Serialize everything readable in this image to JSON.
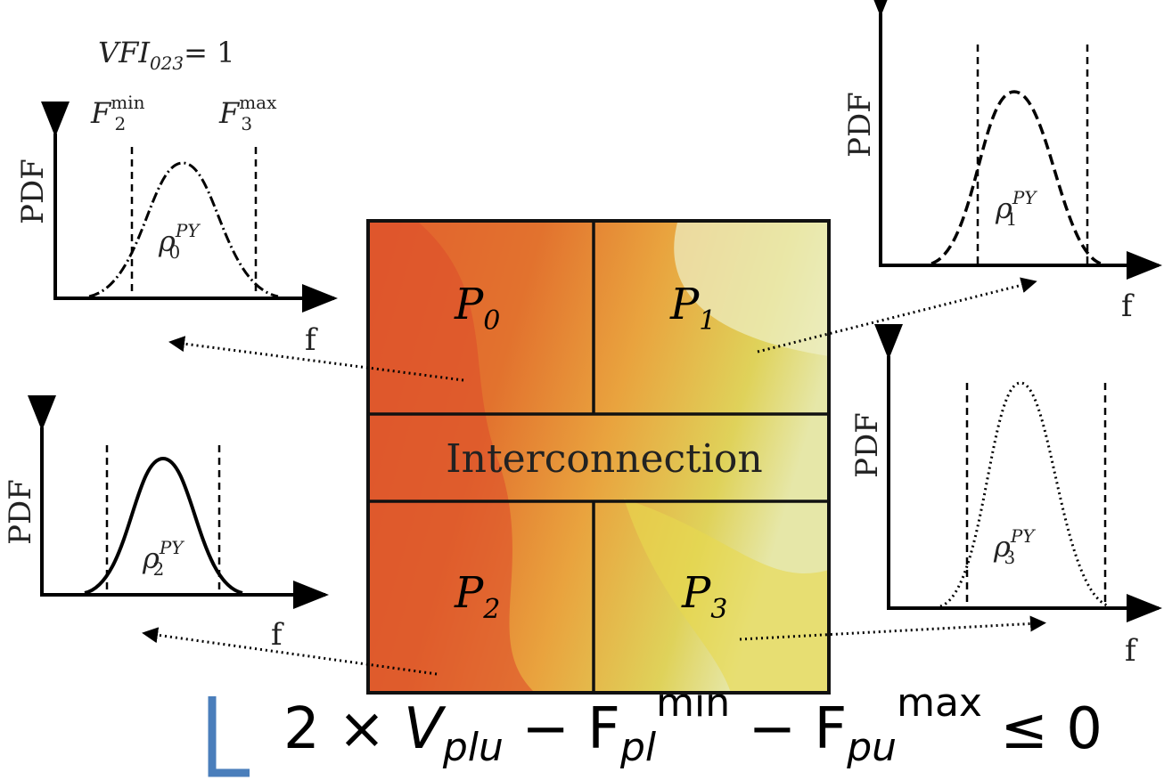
{
  "header": {
    "vfi": "VFI",
    "vfi_sub": "023",
    "vfi_eq": "= 1"
  },
  "bounds": [
    {
      "base": "F",
      "sub": "2",
      "sup": "min"
    },
    {
      "base": "F",
      "sub": "3",
      "sup": "max"
    }
  ],
  "plots": [
    {
      "y_label": "PDF",
      "x_label": "f",
      "density": {
        "base": "ρ",
        "sub": "0",
        "sup": "PY"
      }
    },
    {
      "y_label": "PDF",
      "x_label": "f",
      "density": {
        "base": "ρ",
        "sub": "1",
        "sup": "PY"
      }
    },
    {
      "y_label": "PDF",
      "x_label": "f",
      "density": {
        "base": "ρ",
        "sub": "2",
        "sup": "PY"
      }
    },
    {
      "y_label": "PDF",
      "x_label": "f",
      "density": {
        "base": "ρ",
        "sub": "3",
        "sup": "PY"
      }
    }
  ],
  "chip": {
    "regions": [
      {
        "base": "P",
        "sub": "0"
      },
      {
        "base": "P",
        "sub": "1"
      },
      {
        "base": "P",
        "sub": "2"
      },
      {
        "base": "P",
        "sub": "3"
      }
    ],
    "interconnect": "Interconnection"
  },
  "equation": {
    "lead": "2 × ",
    "v": "V",
    "v_sub": "plu",
    "minus1": " − F",
    "f1_sub": "pl",
    "f1_sup": "min",
    "minus2": " − F",
    "f2_sub": "pu",
    "f2_sup": "max",
    "tail": " ≤ 0"
  }
}
